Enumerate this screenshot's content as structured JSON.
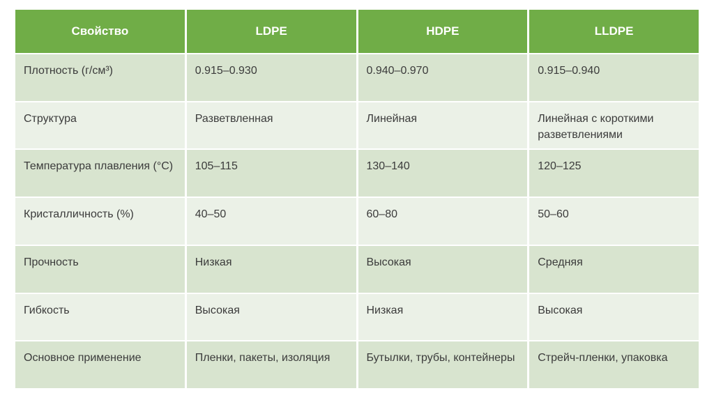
{
  "colors": {
    "page_bg": "#ffffff",
    "header_bg": "#70ad47",
    "header_text": "#ffffff",
    "row_band_dark": "#d8e4cf",
    "row_band_light": "#ebf1e7",
    "body_text": "#3b3b3b"
  },
  "table": {
    "columns": [
      "Свойство",
      "LDPE",
      "HDPE",
      "LLDPE"
    ],
    "rows": [
      {
        "property": "Плотность (г/см³)",
        "values": [
          "0.915–0.930",
          "0.940–0.970",
          "0.915–0.940"
        ]
      },
      {
        "property": "Структура",
        "values": [
          "Разветвленная",
          "Линейная",
          "Линейная с короткими разветвлениями"
        ]
      },
      {
        "property": "Температура плавления (°C)",
        "values": [
          "105–115",
          "130–140",
          "120–125"
        ]
      },
      {
        "property": "Кристалличность (%)",
        "values": [
          "40–50",
          "60–80",
          "50–60"
        ]
      },
      {
        "property": "Прочность",
        "values": [
          "Низкая",
          "Высокая",
          "Средняя"
        ]
      },
      {
        "property": "Гибкость",
        "values": [
          "Высокая",
          "Низкая",
          "Высокая"
        ]
      },
      {
        "property": "Основное применение",
        "values": [
          "Пленки, пакеты, изоляция",
          "Бутылки, трубы, контейнеры",
          "Стрейч-пленки, упаковка"
        ]
      }
    ]
  }
}
